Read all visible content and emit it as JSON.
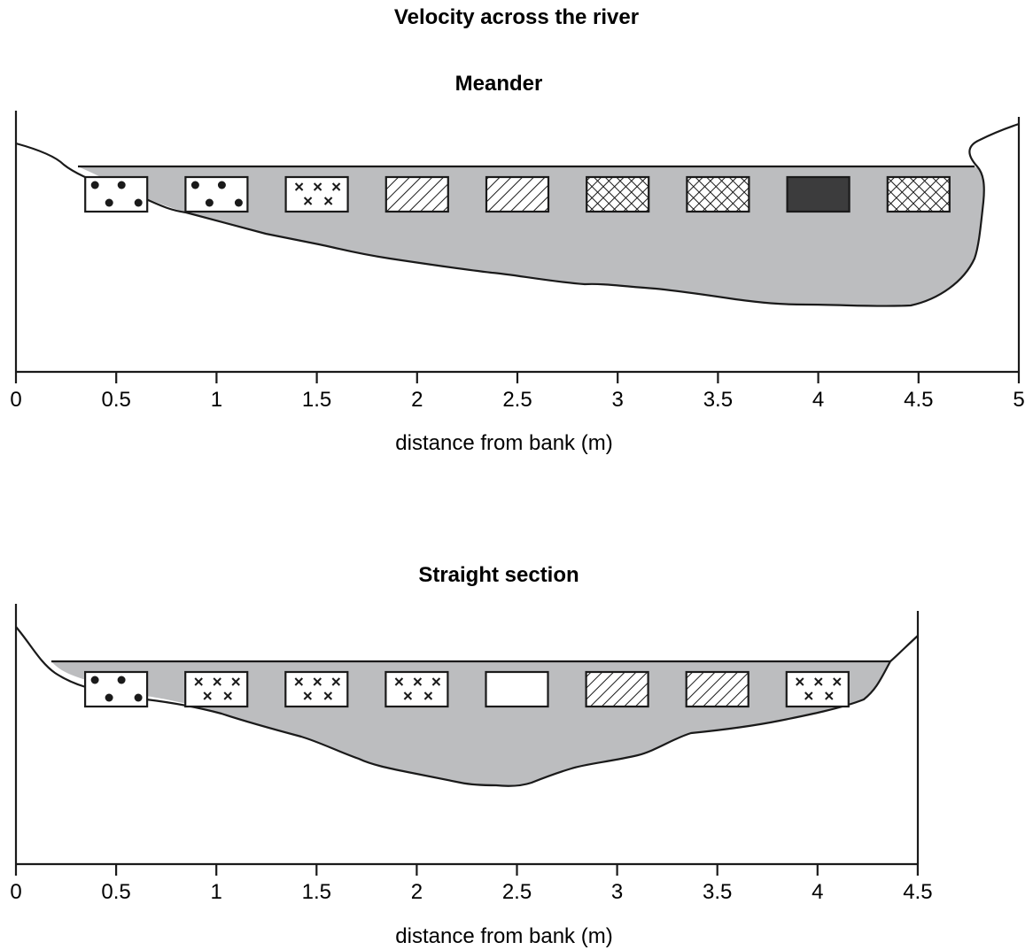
{
  "title": "Velocity across the river",
  "sections": [
    {
      "id": "meander",
      "subtitle": "Meander",
      "xlabel": "distance from bank (m)",
      "x_range": [
        0,
        5
      ],
      "ticks": [
        "0",
        "0.5",
        "1",
        "1.5",
        "2",
        "2.5",
        "3",
        "3.5",
        "4",
        "4.5",
        "5"
      ],
      "measurement_x": [
        0.5,
        1,
        1.5,
        2,
        2.5,
        3,
        3.5,
        4,
        4.5
      ],
      "patterns": [
        "dots",
        "dots",
        "crosses",
        "diagonal-hatch",
        "diagonal-hatch",
        "crosshatch",
        "crosshatch",
        "solid-dark",
        "crosshatch"
      ]
    },
    {
      "id": "straight",
      "subtitle": "Straight section",
      "xlabel": "distance from bank (m)",
      "x_range": [
        0,
        4.5
      ],
      "ticks": [
        "0",
        "0.5",
        "1",
        "1.5",
        "2",
        "2.5",
        "3",
        "3.5",
        "4",
        "4.5"
      ],
      "measurement_x": [
        0.5,
        1,
        1.5,
        2,
        2.5,
        3,
        3.5,
        4
      ],
      "patterns": [
        "dots",
        "crosses",
        "crosses",
        "crosses",
        "blank",
        "diagonal-hatch",
        "diagonal-hatch",
        "crosses"
      ]
    }
  ],
  "colors": {
    "water": "#bcbdbf",
    "ink": "#1a1a1a",
    "dark_fill": "#3c3c3d"
  }
}
